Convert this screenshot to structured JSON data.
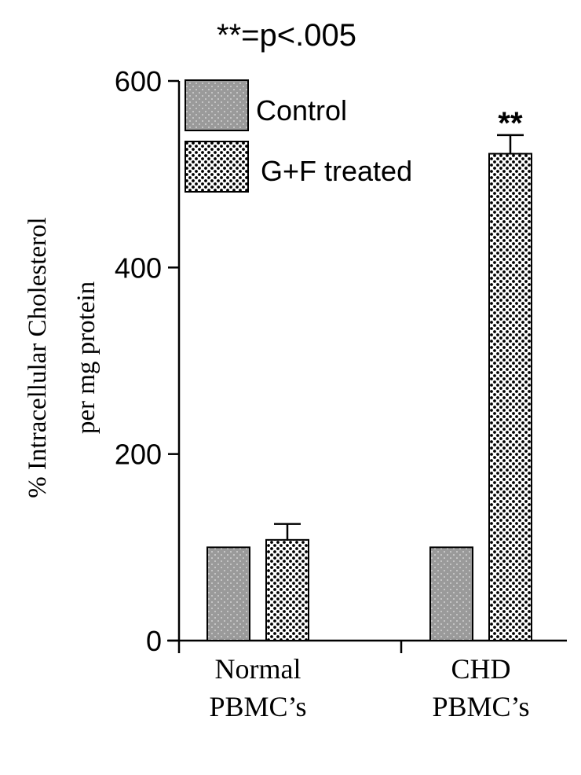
{
  "chart_data": {
    "type": "bar",
    "title": "**=p<.005",
    "ylabel": [
      "% Intracellular Cholesterol",
      "per mg protein"
    ],
    "xlabel": "",
    "ylim": [
      0,
      600
    ],
    "yticks": [
      0,
      200,
      400,
      600
    ],
    "categories": [
      {
        "lines": [
          "Normal",
          "PBMC’s"
        ]
      },
      {
        "lines": [
          "CHD",
          "PBMC’s"
        ]
      }
    ],
    "series": [
      {
        "name": "Control",
        "values": [
          100,
          100
        ],
        "errors": [
          null,
          null
        ],
        "pattern": "dots-grey"
      },
      {
        "name": "G+F treated",
        "values": [
          108,
          522
        ],
        "errors": [
          17,
          20
        ],
        "pattern": "checker"
      }
    ],
    "annotations": [
      {
        "category": 1,
        "series": 1,
        "text": "**"
      }
    ],
    "legend_position": "top-left",
    "grid": false,
    "colors": {
      "control_fill": "#9a9a9a",
      "control_dot": "#d2d2d2",
      "treated_fill": "#ffffff",
      "treated_dot": "#000000",
      "axis": "#000000"
    }
  }
}
